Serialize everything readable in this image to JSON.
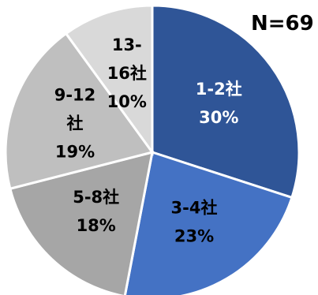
{
  "chart_data": {
    "type": "pie",
    "annotation": "N=69",
    "slices": [
      {
        "label_lines": [
          "1-2社"
        ],
        "percent_label": "30%",
        "value": 30,
        "color": "#2F5597",
        "text_color": "#ffffff"
      },
      {
        "label_lines": [
          "3-4社"
        ],
        "percent_label": "23%",
        "value": 23,
        "color": "#4472C4",
        "text_color": "#000000"
      },
      {
        "label_lines": [
          "5-8社"
        ],
        "percent_label": "18%",
        "value": 18,
        "color": "#A6A6A6",
        "text_color": "#000000"
      },
      {
        "label_lines": [
          "9-12",
          "社"
        ],
        "percent_label": "19%",
        "value": 19,
        "color": "#BFBFBF",
        "text_color": "#000000"
      },
      {
        "label_lines": [
          "13-",
          "16社"
        ],
        "percent_label": "10%",
        "value": 10,
        "color": "#D9D9D9",
        "text_color": "#000000"
      }
    ]
  }
}
